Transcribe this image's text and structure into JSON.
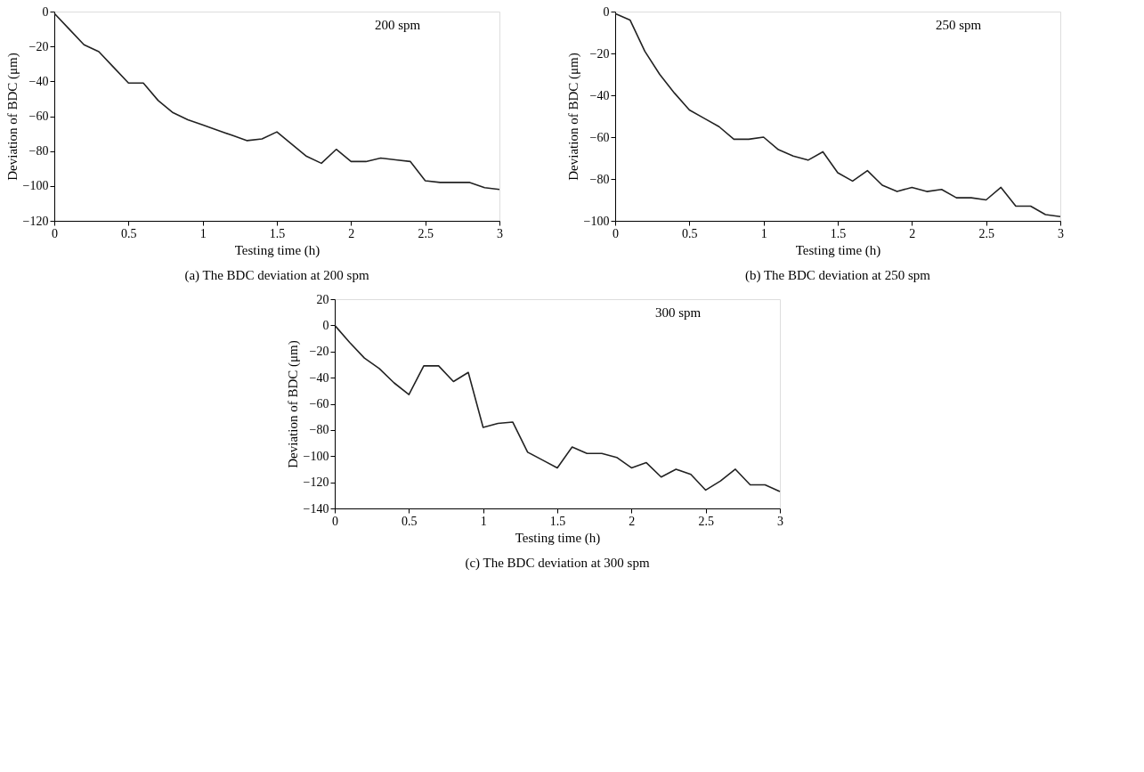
{
  "chart_data": [
    {
      "type": "line",
      "xlabel": "Testing time (h)",
      "ylabel": "Deviation of BDC (μm)",
      "annotations": [
        "200 spm",
        "(a)  The BDC deviation at 200 spm"
      ],
      "x": [
        0,
        0.1,
        0.2,
        0.3,
        0.4,
        0.5,
        0.6,
        0.7,
        0.8,
        0.9,
        1.0,
        1.1,
        1.2,
        1.3,
        1.4,
        1.5,
        1.6,
        1.7,
        1.8,
        1.9,
        2.0,
        2.1,
        2.2,
        2.3,
        2.4,
        2.5,
        2.6,
        2.7,
        2.8,
        2.9,
        3.0
      ],
      "series": [
        {
          "color": "#222222",
          "values": [
            -1,
            -10,
            -19,
            -23,
            -32,
            -41,
            -41,
            -51,
            -58,
            -62,
            -65,
            -68,
            -71,
            -74,
            -73,
            -69,
            -76,
            -83,
            -87,
            -79,
            -86,
            -86,
            -84,
            -85,
            -86,
            -97,
            -98,
            -98,
            -98,
            -101,
            -102
          ]
        }
      ],
      "xlim": [
        0,
        3
      ],
      "xticks": [
        0,
        0.5,
        1,
        1.5,
        2,
        2.5,
        3
      ],
      "ylim": [
        -120,
        0
      ],
      "yticks": [
        -120,
        -100,
        -80,
        -60,
        -40,
        -20,
        0
      ],
      "grid": false,
      "marker": "none",
      "line_style": "solid"
    },
    {
      "type": "line",
      "xlabel": "Testing time (h)",
      "ylabel": "Deviation of BDC (μm)",
      "annotations": [
        "250 spm",
        "(b)  The BDC deviation at 250 spm"
      ],
      "x": [
        0,
        0.1,
        0.2,
        0.3,
        0.4,
        0.5,
        0.6,
        0.7,
        0.8,
        0.9,
        1.0,
        1.1,
        1.2,
        1.3,
        1.4,
        1.5,
        1.6,
        1.7,
        1.8,
        1.9,
        2.0,
        2.1,
        2.2,
        2.3,
        2.4,
        2.5,
        2.6,
        2.7,
        2.8,
        2.9,
        3.0
      ],
      "series": [
        {
          "color": "#222222",
          "values": [
            -1,
            -4,
            -19,
            -30,
            -39,
            -47,
            -51,
            -55,
            -61,
            -61,
            -60,
            -66,
            -69,
            -71,
            -67,
            -77,
            -81,
            -76,
            -83,
            -86,
            -84,
            -86,
            -85,
            -89,
            -89,
            -90,
            -84,
            -93,
            -93,
            -97,
            -98
          ]
        }
      ],
      "xlim": [
        0,
        3
      ],
      "xticks": [
        0,
        0.5,
        1,
        1.5,
        2,
        2.5,
        3
      ],
      "ylim": [
        -100,
        0
      ],
      "yticks": [
        -100,
        -80,
        -60,
        -40,
        -20,
        0
      ],
      "grid": false,
      "marker": "none",
      "line_style": "solid"
    },
    {
      "type": "line",
      "xlabel": "Testing time (h)",
      "ylabel": "Deviation of BDC (μm)",
      "annotations": [
        "300 spm",
        "(c)  The BDC deviation at 300 spm"
      ],
      "x": [
        0,
        0.1,
        0.2,
        0.3,
        0.4,
        0.5,
        0.6,
        0.7,
        0.8,
        0.9,
        1.0,
        1.1,
        1.2,
        1.3,
        1.4,
        1.5,
        1.6,
        1.7,
        1.8,
        1.9,
        2.0,
        2.1,
        2.2,
        2.3,
        2.4,
        2.5,
        2.6,
        2.7,
        2.8,
        2.9,
        3.0
      ],
      "series": [
        {
          "color": "#222222",
          "values": [
            0,
            -13,
            -25,
            -33,
            -44,
            -53,
            -31,
            -31,
            -43,
            -36,
            -78,
            -75,
            -74,
            -97,
            -103,
            -109,
            -93,
            -98,
            -98,
            -101,
            -109,
            -105,
            -116,
            -110,
            -114,
            -126,
            -119,
            -110,
            -122,
            -122,
            -127
          ]
        }
      ],
      "xlim": [
        0,
        3
      ],
      "xticks": [
        0,
        0.5,
        1,
        1.5,
        2,
        2.5,
        3
      ],
      "ylim": [
        -140,
        20
      ],
      "yticks": [
        -140,
        -120,
        -100,
        -80,
        -60,
        -40,
        -20,
        0,
        20
      ],
      "grid": false,
      "marker": "none",
      "line_style": "solid"
    }
  ]
}
